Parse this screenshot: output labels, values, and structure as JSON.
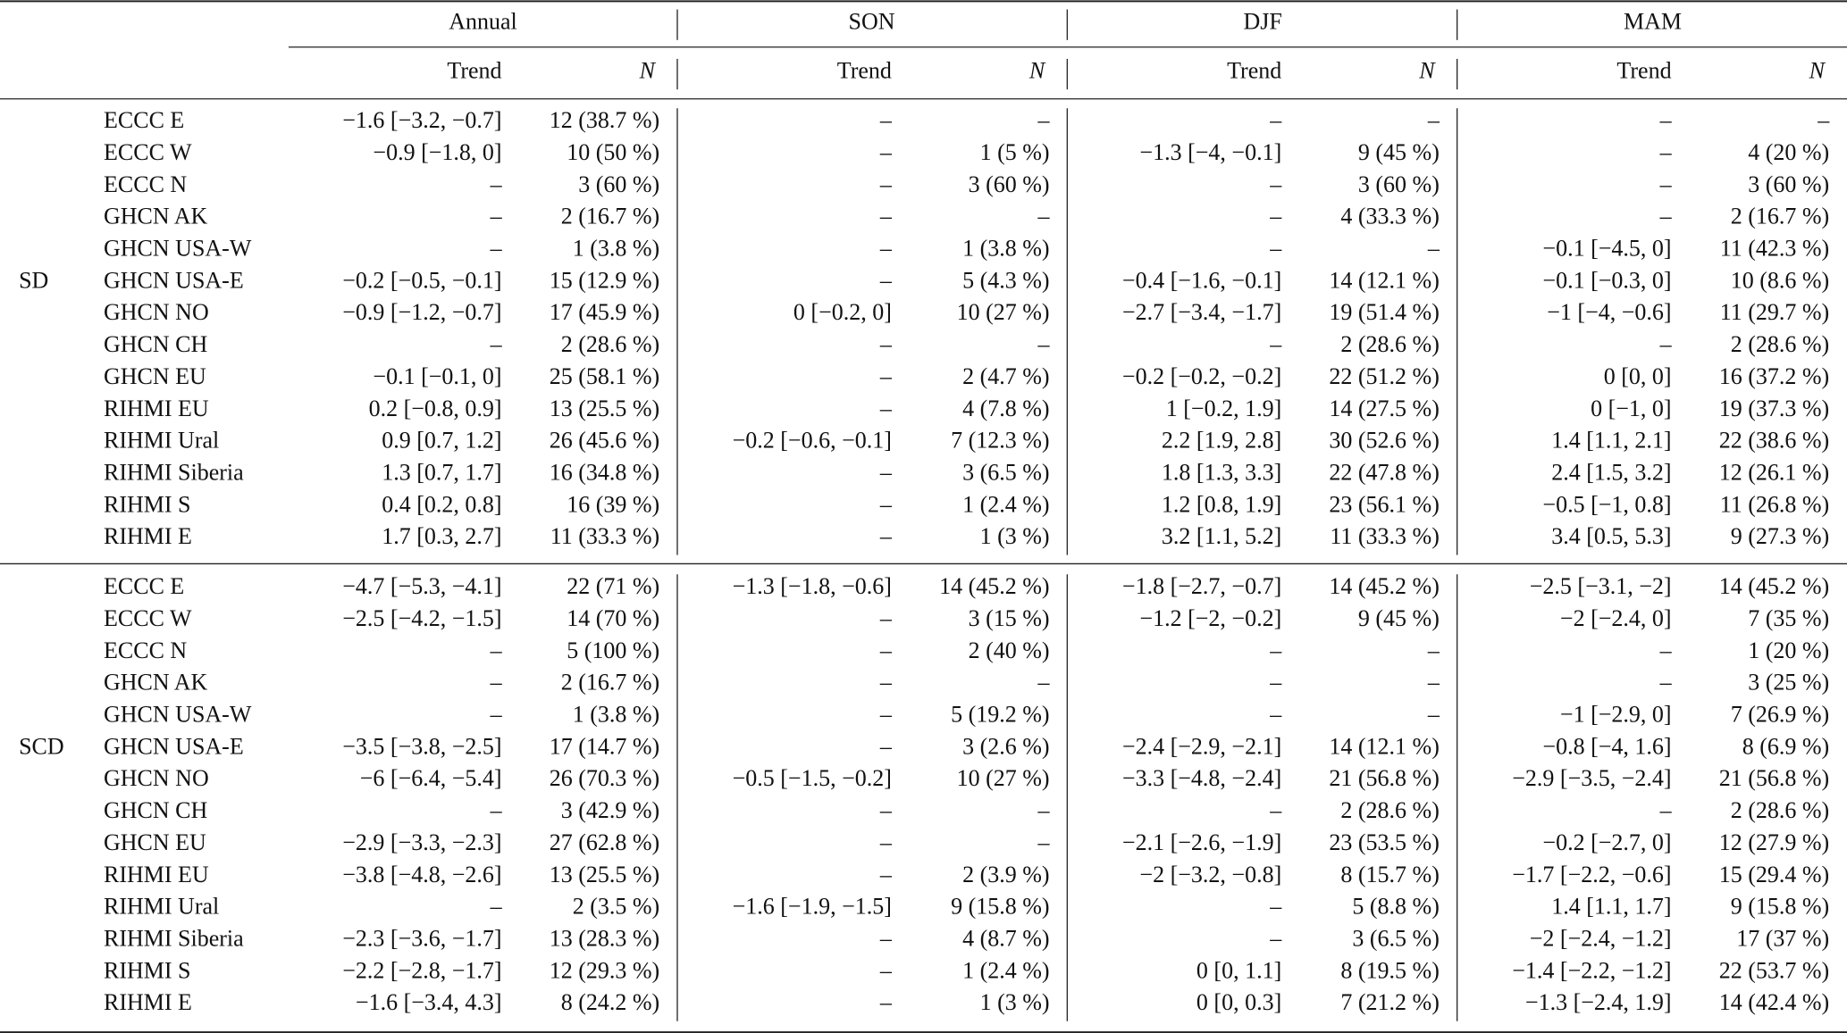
{
  "table": {
    "seasons": [
      "Annual",
      "SON",
      "DJF",
      "MAM"
    ],
    "subheaders": [
      "Trend",
      "N"
    ],
    "groups": [
      {
        "label": "SD",
        "rows": [
          {
            "station": "ECCC E",
            "cells": [
              "−1.6 [−3.2, −0.7]",
              "12 (38.7 %)",
              "–",
              "–",
              "–",
              "–",
              "–",
              "–"
            ]
          },
          {
            "station": "ECCC W",
            "cells": [
              "−0.9 [−1.8, 0]",
              "10 (50 %)",
              "–",
              "1 (5 %)",
              "−1.3 [−4, −0.1]",
              "9 (45 %)",
              "–",
              "4 (20 %)"
            ]
          },
          {
            "station": "ECCC N",
            "cells": [
              "–",
              "3 (60 %)",
              "–",
              "3 (60 %)",
              "–",
              "3 (60 %)",
              "–",
              "3 (60 %)"
            ]
          },
          {
            "station": "GHCN AK",
            "cells": [
              "–",
              "2 (16.7 %)",
              "–",
              "–",
              "–",
              "4 (33.3 %)",
              "–",
              "2 (16.7 %)"
            ]
          },
          {
            "station": "GHCN USA-W",
            "cells": [
              "–",
              "1 (3.8 %)",
              "–",
              "1 (3.8 %)",
              "–",
              "–",
              "−0.1 [−4.5, 0]",
              "11 (42.3 %)"
            ]
          },
          {
            "station": "GHCN USA-E",
            "cells": [
              "−0.2 [−0.5, −0.1]",
              "15 (12.9 %)",
              "–",
              "5 (4.3 %)",
              "−0.4 [−1.6, −0.1]",
              "14 (12.1 %)",
              "−0.1 [−0.3, 0]",
              "10 (8.6 %)"
            ]
          },
          {
            "station": "GHCN NO",
            "cells": [
              "−0.9 [−1.2, −0.7]",
              "17 (45.9 %)",
              "0 [−0.2, 0]",
              "10 (27 %)",
              "−2.7 [−3.4, −1.7]",
              "19 (51.4 %)",
              "−1 [−4, −0.6]",
              "11 (29.7 %)"
            ]
          },
          {
            "station": "GHCN CH",
            "cells": [
              "–",
              "2 (28.6 %)",
              "–",
              "–",
              "–",
              "2 (28.6 %)",
              "–",
              "2 (28.6 %)"
            ]
          },
          {
            "station": "GHCN EU",
            "cells": [
              "−0.1 [−0.1, 0]",
              "25 (58.1 %)",
              "–",
              "2 (4.7 %)",
              "−0.2 [−0.2, −0.2]",
              "22 (51.2 %)",
              "0 [0, 0]",
              "16 (37.2 %)"
            ]
          },
          {
            "station": "RIHMI EU",
            "cells": [
              "0.2 [−0.8, 0.9]",
              "13 (25.5 %)",
              "–",
              "4 (7.8 %)",
              "1 [−0.2, 1.9]",
              "14 (27.5 %)",
              "0 [−1, 0]",
              "19 (37.3 %)"
            ]
          },
          {
            "station": "RIHMI Ural",
            "cells": [
              "0.9 [0.7, 1.2]",
              "26 (45.6 %)",
              "−0.2 [−0.6, −0.1]",
              "7 (12.3 %)",
              "2.2 [1.9, 2.8]",
              "30 (52.6 %)",
              "1.4 [1.1, 2.1]",
              "22 (38.6 %)"
            ]
          },
          {
            "station": "RIHMI Siberia",
            "cells": [
              "1.3 [0.7, 1.7]",
              "16 (34.8 %)",
              "–",
              "3 (6.5 %)",
              "1.8 [1.3, 3.3]",
              "22 (47.8 %)",
              "2.4 [1.5, 3.2]",
              "12 (26.1 %)"
            ]
          },
          {
            "station": "RIHMI S",
            "cells": [
              "0.4 [0.2, 0.8]",
              "16 (39 %)",
              "–",
              "1 (2.4 %)",
              "1.2 [0.8, 1.9]",
              "23 (56.1 %)",
              "−0.5 [−1, 0.8]",
              "11 (26.8 %)"
            ]
          },
          {
            "station": "RIHMI E",
            "cells": [
              "1.7 [0.3, 2.7]",
              "11 (33.3 %)",
              "–",
              "1 (3 %)",
              "3.2 [1.1, 5.2]",
              "11 (33.3 %)",
              "3.4 [0.5, 5.3]",
              "9 (27.3 %)"
            ]
          }
        ]
      },
      {
        "label": "SCD",
        "rows": [
          {
            "station": "ECCC E",
            "cells": [
              "−4.7 [−5.3, −4.1]",
              "22 (71 %)",
              "−1.3 [−1.8, −0.6]",
              "14 (45.2 %)",
              "−1.8 [−2.7, −0.7]",
              "14 (45.2 %)",
              "−2.5 [−3.1, −2]",
              "14 (45.2 %)"
            ]
          },
          {
            "station": "ECCC W",
            "cells": [
              "−2.5 [−4.2, −1.5]",
              "14 (70 %)",
              "–",
              "3 (15 %)",
              "−1.2 [−2, −0.2]",
              "9 (45 %)",
              "−2 [−2.4, 0]",
              "7 (35 %)"
            ]
          },
          {
            "station": "ECCC N",
            "cells": [
              "–",
              "5 (100 %)",
              "–",
              "2 (40 %)",
              "–",
              "–",
              "–",
              "1 (20 %)"
            ]
          },
          {
            "station": "GHCN AK",
            "cells": [
              "–",
              "2 (16.7 %)",
              "–",
              "–",
              "–",
              "–",
              "–",
              "3 (25 %)"
            ]
          },
          {
            "station": "GHCN USA-W",
            "cells": [
              "–",
              "1 (3.8 %)",
              "–",
              "5 (19.2 %)",
              "–",
              "–",
              "−1 [−2.9, 0]",
              "7 (26.9 %)"
            ]
          },
          {
            "station": "GHCN USA-E",
            "cells": [
              "−3.5 [−3.8, −2.5]",
              "17 (14.7 %)",
              "–",
              "3 (2.6 %)",
              "−2.4 [−2.9, −2.1]",
              "14 (12.1 %)",
              "−0.8 [−4, 1.6]",
              "8 (6.9 %)"
            ]
          },
          {
            "station": "GHCN NO",
            "cells": [
              "−6 [−6.4, −5.4]",
              "26 (70.3 %)",
              "−0.5 [−1.5, −0.2]",
              "10 (27 %)",
              "−3.3 [−4.8, −2.4]",
              "21 (56.8 %)",
              "−2.9 [−3.5, −2.4]",
              "21 (56.8 %)"
            ]
          },
          {
            "station": "GHCN CH",
            "cells": [
              "–",
              "3 (42.9 %)",
              "–",
              "–",
              "–",
              "2 (28.6 %)",
              "–",
              "2 (28.6 %)"
            ]
          },
          {
            "station": "GHCN EU",
            "cells": [
              "−2.9 [−3.3, −2.3]",
              "27 (62.8 %)",
              "–",
              "–",
              "−2.1 [−2.6, −1.9]",
              "23 (53.5 %)",
              "−0.2 [−2.7, 0]",
              "12 (27.9 %)"
            ]
          },
          {
            "station": "RIHMI EU",
            "cells": [
              "−3.8 [−4.8, −2.6]",
              "13 (25.5 %)",
              "–",
              "2 (3.9 %)",
              "−2 [−3.2, −0.8]",
              "8 (15.7 %)",
              "−1.7 [−2.2, −0.6]",
              "15 (29.4 %)"
            ]
          },
          {
            "station": "RIHMI Ural",
            "cells": [
              "–",
              "2 (3.5 %)",
              "−1.6 [−1.9, −1.5]",
              "9 (15.8 %)",
              "–",
              "5 (8.8 %)",
              "1.4 [1.1, 1.7]",
              "9 (15.8 %)"
            ]
          },
          {
            "station": "RIHMI Siberia",
            "cells": [
              "−2.3 [−3.6, −1.7]",
              "13 (28.3 %)",
              "–",
              "4 (8.7 %)",
              "–",
              "3 (6.5 %)",
              "−2 [−2.4, −1.2]",
              "17 (37 %)"
            ]
          },
          {
            "station": "RIHMI S",
            "cells": [
              "−2.2 [−2.8, −1.7]",
              "12 (29.3 %)",
              "–",
              "1 (2.4 %)",
              "0 [0, 1.1]",
              "8 (19.5 %)",
              "−1.4 [−2.2, −1.2]",
              "22 (53.7 %)"
            ]
          },
          {
            "station": "RIHMI E",
            "cells": [
              "−1.6 [−3.4, 4.3]",
              "8 (24.2 %)",
              "–",
              "1 (3 %)",
              "0 [0, 0.3]",
              "7 (21.2 %)",
              "−1.3 [−2.4, 1.9]",
              "14 (42.4 %)"
            ]
          }
        ]
      }
    ]
  }
}
